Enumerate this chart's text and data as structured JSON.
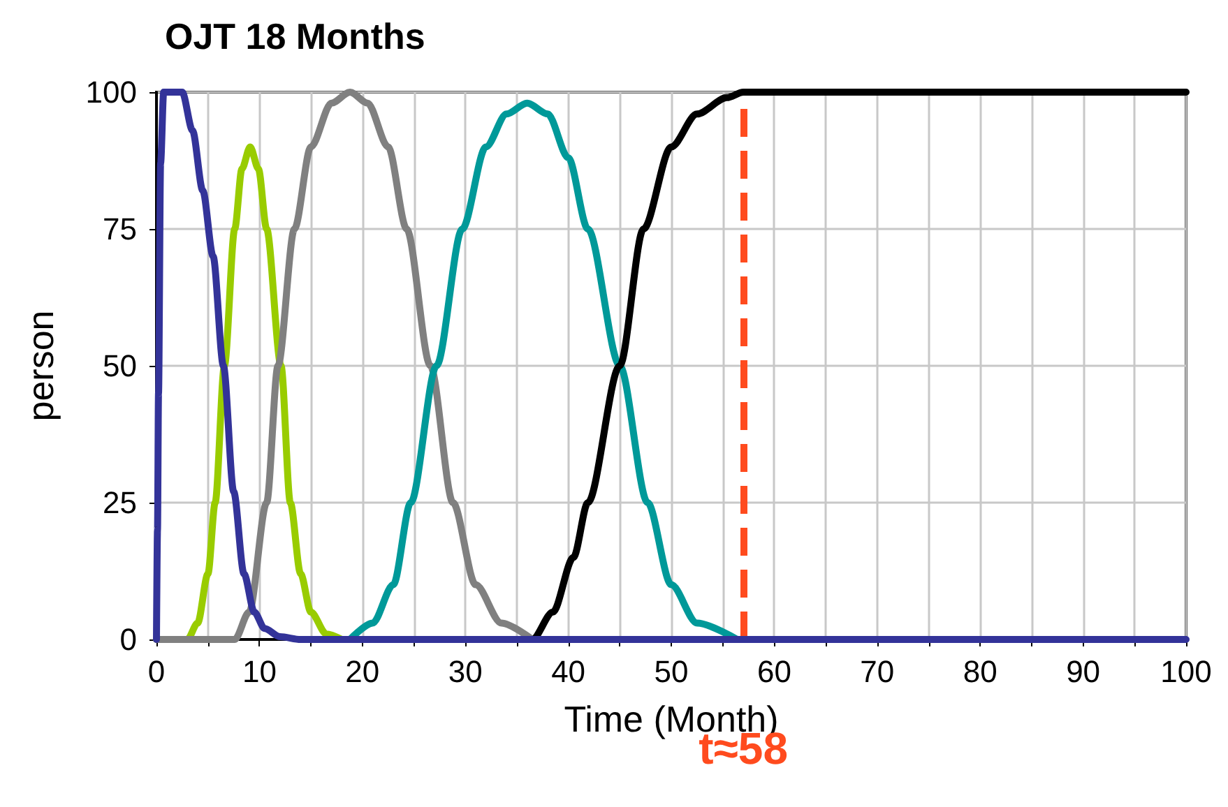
{
  "chart_data": {
    "type": "line",
    "title": "OJT 18 Months",
    "xlabel": "Time (Month)",
    "ylabel": "person",
    "xlim": [
      0,
      100
    ],
    "ylim": [
      0,
      100
    ],
    "xticks": [
      0,
      {
        "value": 5,
        "label": null
      },
      10,
      {
        "value": 15,
        "label": null
      },
      20,
      {
        "value": 25,
        "label": null
      },
      30,
      {
        "value": 35,
        "label": null
      },
      40,
      {
        "value": 45,
        "label": null
      },
      50,
      {
        "value": 55,
        "label": null
      },
      60,
      {
        "value": 65,
        "label": null
      },
      70,
      {
        "value": 75,
        "label": null
      },
      80,
      {
        "value": 85,
        "label": null
      },
      90,
      {
        "value": 95,
        "label": null
      },
      100
    ],
    "yticks": [
      0,
      25,
      50,
      75,
      100
    ],
    "grid": true,
    "marker": "none",
    "line_style": "solid",
    "ref_lines": [
      {
        "axis": "x",
        "value": 57,
        "label": "t≈58",
        "color": "#ff4b1e",
        "line_style": "dashed"
      }
    ],
    "series": [
      {
        "color": "#99cc00",
        "x": [
          0,
          3,
          4,
          5,
          5.7,
          6.6,
          7.6,
          8.3,
          9.1,
          9.9,
          10.7,
          12.1,
          13,
          14,
          15,
          16.5,
          18
        ],
        "values": [
          0,
          0,
          3,
          12,
          25,
          50,
          75,
          86,
          90,
          86,
          75,
          50,
          25,
          12,
          5,
          1,
          0
        ]
      },
      {
        "color": "#808080",
        "x": [
          0,
          7.6,
          9,
          10.7,
          11.8,
          13.4,
          15,
          17,
          18.8,
          20.5,
          22.5,
          24.3,
          26.6,
          28.8,
          31,
          33.5,
          36.5
        ],
        "values": [
          0,
          0,
          5,
          25,
          50,
          75,
          90,
          98,
          100,
          98,
          90,
          75,
          50,
          25,
          10,
          3,
          0
        ]
      },
      {
        "color": "#009999",
        "x": [
          18.8,
          21,
          23,
          24.7,
          27.2,
          29.7,
          32,
          34,
          36,
          38,
          40,
          41.9,
          45,
          47.7,
          50,
          52.5,
          56.4
        ],
        "values": [
          0,
          3,
          10,
          25,
          50,
          75,
          90,
          96,
          98,
          96,
          88,
          75,
          50,
          25,
          10,
          3,
          0
        ]
      },
      {
        "color": "#000000",
        "x": [
          35,
          36.5,
          38.5,
          40.5,
          41.9,
          45,
          47.3,
          50,
          52.5,
          55.4,
          57,
          100
        ],
        "values": [
          0,
          0,
          5,
          15,
          25,
          50,
          75,
          90,
          96,
          99,
          100,
          100
        ]
      },
      {
        "color": "#333399",
        "x": [
          0,
          0.1,
          0.2,
          0.4,
          0.7,
          2.5,
          3.5,
          4.5,
          5.5,
          6.5,
          7.5,
          8.5,
          9.5,
          10.5,
          12,
          14,
          100
        ],
        "values": [
          0,
          20,
          45,
          87,
          100,
          100,
          93,
          82,
          70,
          50,
          27,
          12,
          5,
          2,
          0.5,
          0,
          0
        ]
      }
    ]
  }
}
